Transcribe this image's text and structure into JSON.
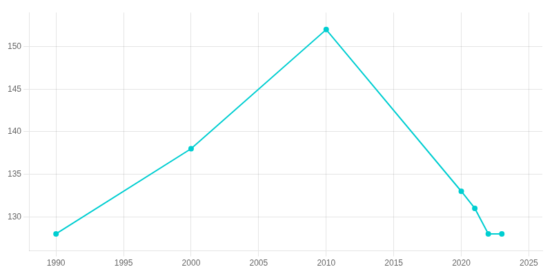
{
  "chart_data": {
    "type": "line",
    "x": [
      1990,
      2000,
      2010,
      2020,
      2021,
      2022,
      2023
    ],
    "values": [
      128,
      138,
      152,
      133,
      131,
      128,
      128
    ],
    "color": "#00CED1",
    "marker": "o",
    "xlim": [
      1988,
      2026
    ],
    "ylim": [
      126,
      154
    ],
    "xticks": [
      1990,
      1995,
      2000,
      2005,
      2010,
      2015,
      2020,
      2025
    ],
    "yticks": [
      130,
      135,
      140,
      145,
      150
    ],
    "grid": true
  }
}
